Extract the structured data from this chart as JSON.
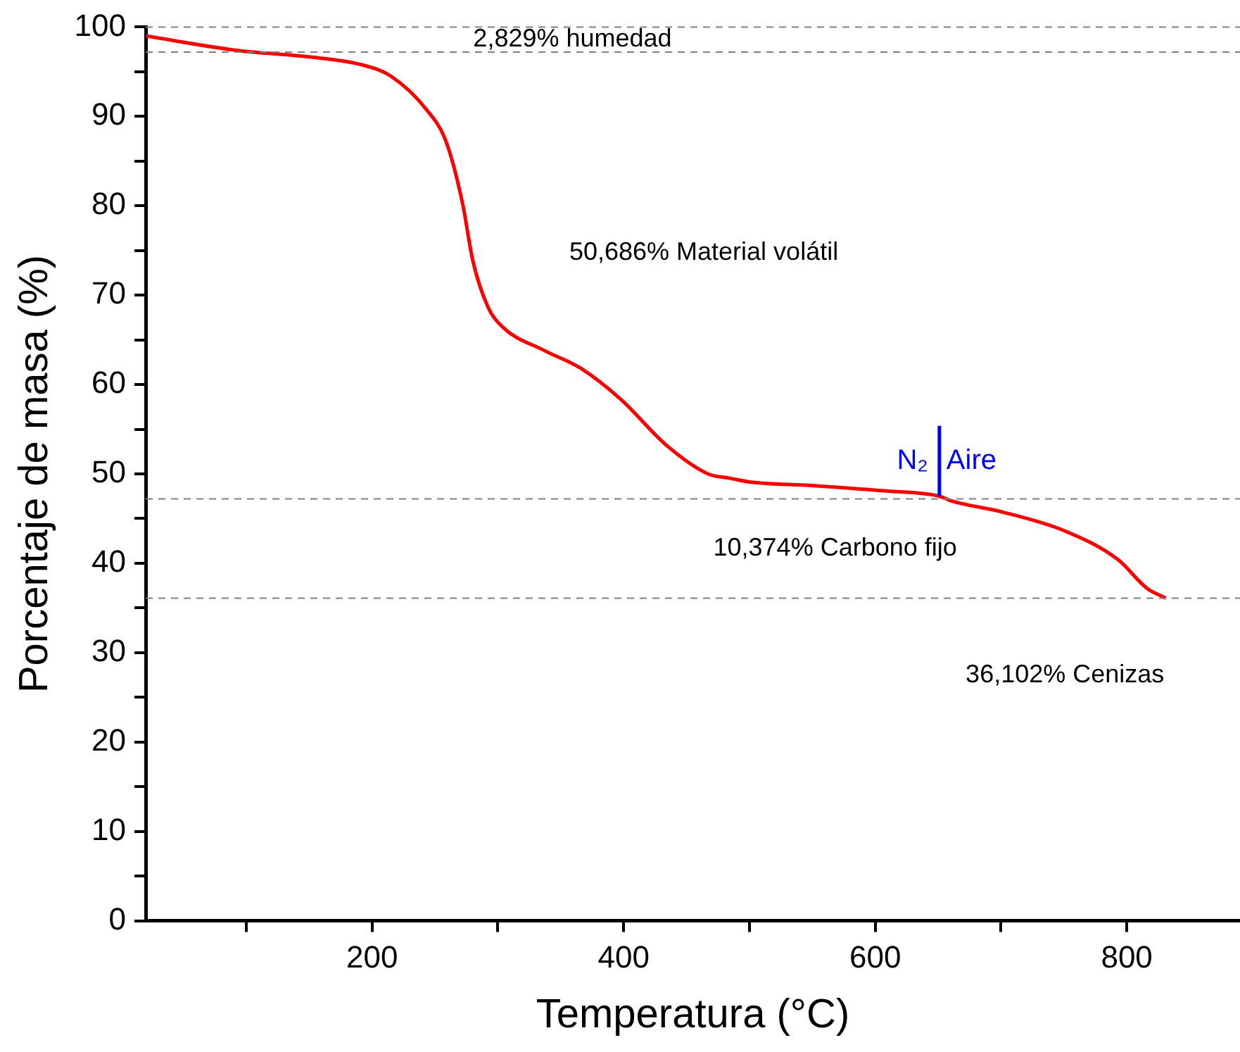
{
  "chart_data": {
    "type": "line",
    "xlabel": "Temperatura (°C)",
    "ylabel": "Porcentaje de masa (%)",
    "xlim": [
      20,
      890
    ],
    "ylim": [
      0,
      100
    ],
    "xticks": [
      {
        "value": 100,
        "label": null
      },
      200,
      {
        "value": 300,
        "label": null
      },
      400,
      {
        "value": 500,
        "label": null
      },
      600,
      {
        "value": 700,
        "label": null
      },
      800
    ],
    "yticks": [
      0,
      {
        "value": 5,
        "label": null
      },
      10,
      {
        "value": 15,
        "label": null
      },
      20,
      {
        "value": 25,
        "label": null
      },
      30,
      {
        "value": 35,
        "label": null
      },
      40,
      {
        "value": 45,
        "label": null
      },
      50,
      {
        "value": 55,
        "label": null
      },
      60,
      {
        "value": 65,
        "label": null
      },
      70,
      {
        "value": 75,
        "label": null
      },
      80,
      {
        "value": 85,
        "label": null
      },
      90,
      {
        "value": 95,
        "label": null
      },
      100
    ],
    "grid": false,
    "legend": false,
    "marker": "none",
    "line_style": "solid",
    "series": [
      {
        "color": "#ff0000",
        "x": [
          20,
          92,
          154,
          194,
          215,
          243,
          259,
          272,
          280,
          292,
          304,
          337,
          366,
          398,
          434,
          467,
          485,
          500,
          549,
          607,
          651,
          660,
          702,
          751,
          793,
          816,
          831
        ],
        "values": [
          99.0,
          97.4,
          96.6,
          95.7,
          94.5,
          90.8,
          87.1,
          80.2,
          73.9,
          68.7,
          66.4,
          63.8,
          61.8,
          58.3,
          53.2,
          50.0,
          49.5,
          49.1,
          48.7,
          48.1,
          47.5,
          47.0,
          45.7,
          43.6,
          40.4,
          37.2,
          36.1
        ]
      }
    ],
    "ref_lines": [
      {
        "axis": "y",
        "value": 100,
        "color": "#808080",
        "line_style": "dashed"
      },
      {
        "axis": "y",
        "value": 97.2,
        "color": "#808080",
        "line_style": "dashed"
      },
      {
        "axis": "y",
        "value": 47.2,
        "color": "#808080",
        "line_style": "dashed"
      },
      {
        "axis": "y",
        "value": 36.1,
        "color": "#808080",
        "line_style": "dashed"
      },
      {
        "axis": "x",
        "value": 651,
        "label": "Aire",
        "color": "#0000ff",
        "line_style": "solid"
      }
    ],
    "annotations": [
      "2,829% humedad",
      "50,686% Material volátil",
      "10,374% Carbono fijo",
      "36,102% Cenizas",
      "N₂"
    ]
  }
}
